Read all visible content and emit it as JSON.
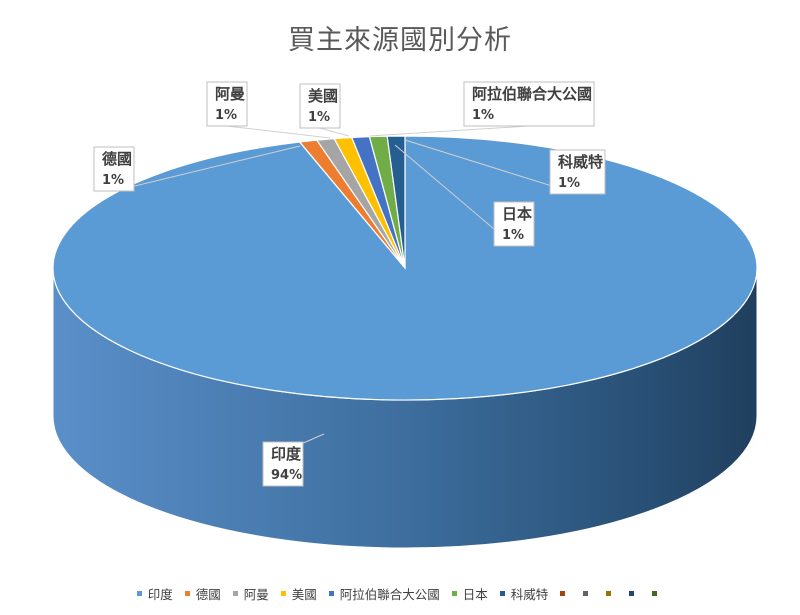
{
  "chart_data": {
    "type": "pie",
    "title": "買主來源國別分析",
    "slices": [
      {
        "name": "印度",
        "value": 94,
        "label": "94%",
        "color": "#5B9BD5"
      },
      {
        "name": "德國",
        "value": 1,
        "label": "1%",
        "color": "#ED7D31"
      },
      {
        "name": "阿曼",
        "value": 1,
        "label": "1%",
        "color": "#A5A5A5"
      },
      {
        "name": "美國",
        "value": 1,
        "label": "1%",
        "color": "#FFC000"
      },
      {
        "name": "阿拉伯聯合大公國",
        "value": 1,
        "label": "1%",
        "color": "#4472C4"
      },
      {
        "name": "日本",
        "value": 1,
        "label": "1%",
        "color": "#70AD47"
      },
      {
        "name": "科威特",
        "value": 1,
        "label": "1%",
        "color": "#255E91"
      }
    ],
    "legend_position": "bottom",
    "legend_extra_colors": [
      "#9E480E",
      "#636363",
      "#997300",
      "#264478",
      "#43682B"
    ]
  }
}
